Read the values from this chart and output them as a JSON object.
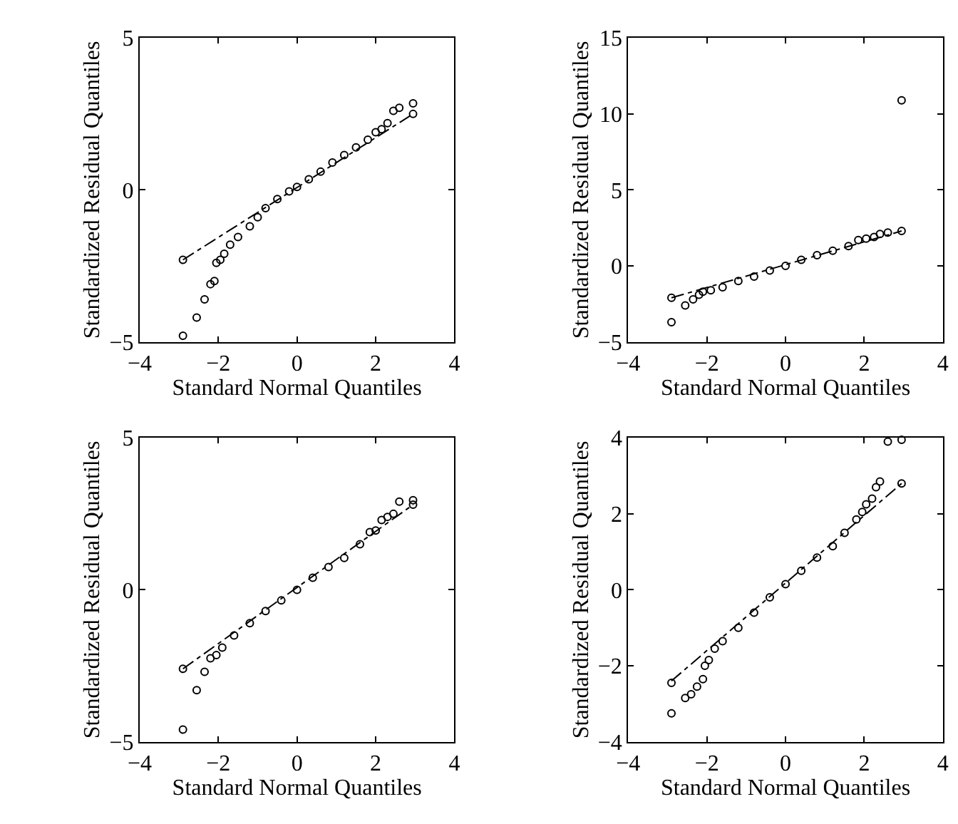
{
  "chart_data": [
    {
      "type": "scatter",
      "xlabel": "Standard Normal Quantiles",
      "ylabel": "Standardized Residual Quantiles",
      "xlim": [
        -4,
        4
      ],
      "xticks": [
        -4,
        -2,
        0,
        2,
        4
      ],
      "ylim": [
        -5,
        5
      ],
      "yticks": [
        -5,
        0,
        5
      ],
      "series": [
        {
          "marker": "circle",
          "color": "#000000",
          "x": [
            -2.9,
            -2.9,
            -2.55,
            -2.35,
            -2.2,
            -2.1,
            -2.05,
            -1.95,
            -1.85,
            -1.7,
            -1.5,
            -1.2,
            -1.0,
            -0.8,
            -0.5,
            -0.2,
            0,
            0.3,
            0.6,
            0.9,
            1.2,
            1.5,
            1.8,
            2.0,
            2.15,
            2.3,
            2.45,
            2.6,
            2.95,
            2.95
          ],
          "values": [
            -4.8,
            -2.3,
            -4.2,
            -3.6,
            -3.1,
            -3.0,
            -2.4,
            -2.3,
            -2.1,
            -1.8,
            -1.55,
            -1.2,
            -0.9,
            -0.6,
            -0.3,
            -0.05,
            0.1,
            0.35,
            0.6,
            0.9,
            1.15,
            1.4,
            1.65,
            1.9,
            2.0,
            2.2,
            2.6,
            2.7,
            2.85,
            2.5
          ]
        },
        {
          "type": "line",
          "color": "#000000",
          "line_style": "dashed",
          "x": [
            -2.9,
            2.95
          ],
          "values": [
            -2.3,
            2.5
          ]
        }
      ]
    },
    {
      "type": "scatter",
      "xlabel": "Standard Normal Quantiles",
      "ylabel": "Standardized Residual Quantiles",
      "xlim": [
        -4,
        4
      ],
      "xticks": [
        -4,
        -2,
        0,
        2,
        4
      ],
      "ylim": [
        -5,
        15
      ],
      "yticks": [
        -5,
        0,
        5,
        10,
        15
      ],
      "series": [
        {
          "marker": "circle",
          "color": "#000000",
          "x": [
            -2.9,
            -2.9,
            -2.55,
            -2.35,
            -2.2,
            -2.1,
            -1.9,
            -1.6,
            -1.2,
            -0.8,
            -0.4,
            0,
            0.4,
            0.8,
            1.2,
            1.6,
            1.85,
            2.05,
            2.25,
            2.4,
            2.6,
            2.95,
            2.95
          ],
          "values": [
            -3.7,
            -2.1,
            -2.6,
            -2.2,
            -1.9,
            -1.7,
            -1.6,
            -1.4,
            -1.0,
            -0.7,
            -0.3,
            0.0,
            0.4,
            0.7,
            1.0,
            1.3,
            1.7,
            1.8,
            1.9,
            2.1,
            2.2,
            2.3,
            10.9
          ]
        },
        {
          "type": "line",
          "color": "#000000",
          "line_style": "dashed",
          "x": [
            -2.9,
            2.95
          ],
          "values": [
            -2.1,
            2.3
          ]
        }
      ]
    },
    {
      "type": "scatter",
      "xlabel": "Standard Normal Quantiles",
      "ylabel": "Standardized Residual Quantiles",
      "xlim": [
        -4,
        4
      ],
      "xticks": [
        -4,
        -2,
        0,
        2,
        4
      ],
      "ylim": [
        -5,
        5
      ],
      "yticks": [
        -5,
        0,
        5
      ],
      "series": [
        {
          "marker": "circle",
          "color": "#000000",
          "x": [
            -2.9,
            -2.9,
            -2.55,
            -2.35,
            -2.2,
            -2.05,
            -1.9,
            -1.6,
            -1.2,
            -0.8,
            -0.4,
            0,
            0.4,
            0.8,
            1.2,
            1.6,
            1.85,
            2.0,
            2.15,
            2.3,
            2.45,
            2.6,
            2.95,
            2.95
          ],
          "values": [
            -4.6,
            -2.6,
            -3.3,
            -2.7,
            -2.25,
            -2.15,
            -1.9,
            -1.5,
            -1.1,
            -0.7,
            -0.35,
            0,
            0.4,
            0.75,
            1.05,
            1.5,
            1.9,
            1.95,
            2.3,
            2.4,
            2.5,
            2.9,
            2.8,
            2.95
          ]
        },
        {
          "type": "line",
          "color": "#000000",
          "line_style": "dashed",
          "x": [
            -2.9,
            2.95
          ],
          "values": [
            -2.6,
            2.8
          ]
        }
      ]
    },
    {
      "type": "scatter",
      "xlabel": "Standard Normal Quantiles",
      "ylabel": "Standardized Residual Quantiles",
      "xlim": [
        -4,
        4
      ],
      "xticks": [
        -4,
        -2,
        0,
        2,
        4
      ],
      "ylim": [
        -4,
        4
      ],
      "yticks": [
        -4,
        -2,
        0,
        2,
        4
      ],
      "series": [
        {
          "marker": "circle",
          "color": "#000000",
          "x": [
            -2.9,
            -2.9,
            -2.55,
            -2.4,
            -2.25,
            -2.1,
            -2.05,
            -1.95,
            -1.8,
            -1.6,
            -1.2,
            -0.8,
            -0.4,
            0,
            0.4,
            0.8,
            1.2,
            1.5,
            1.8,
            1.95,
            2.05,
            2.2,
            2.3,
            2.4,
            2.6,
            2.95,
            2.95
          ],
          "values": [
            -3.25,
            -2.45,
            -2.85,
            -2.75,
            -2.55,
            -2.35,
            -2.0,
            -1.85,
            -1.55,
            -1.35,
            -1.0,
            -0.6,
            -0.2,
            0.15,
            0.5,
            0.85,
            1.15,
            1.5,
            1.85,
            2.05,
            2.25,
            2.4,
            2.7,
            2.85,
            3.9,
            3.95,
            2.8
          ]
        },
        {
          "type": "line",
          "color": "#000000",
          "line_style": "dashed",
          "x": [
            -2.9,
            2.95
          ],
          "values": [
            -2.4,
            2.8
          ]
        }
      ]
    }
  ]
}
